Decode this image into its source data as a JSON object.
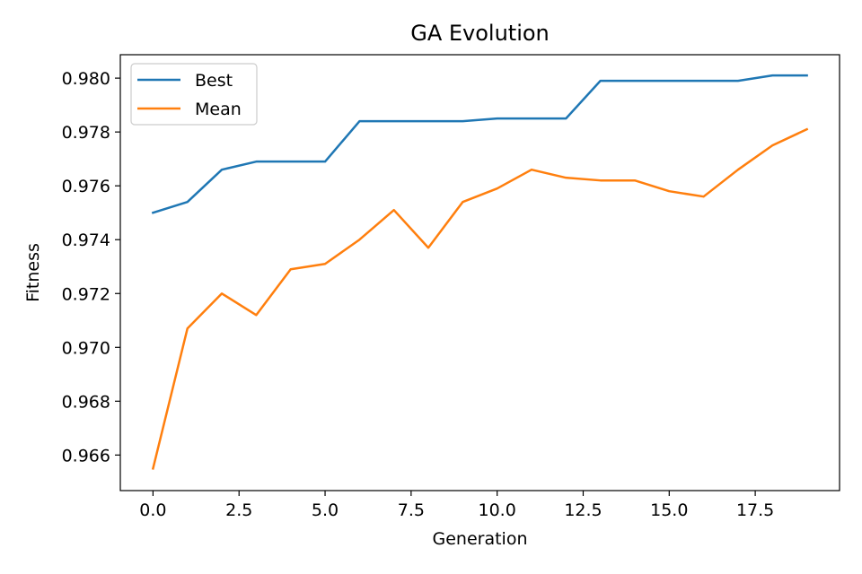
{
  "chart_data": {
    "type": "line",
    "title": "GA Evolution",
    "xlabel": "Generation",
    "ylabel": "Fitness",
    "xlim": [
      -0.95,
      19.95
    ],
    "ylim": [
      0.96468,
      0.98087
    ],
    "xticks": [
      0,
      2.5,
      5,
      7.5,
      10,
      12.5,
      15,
      17.5
    ],
    "xtick_labels": [
      "0.0",
      "2.5",
      "5.0",
      "7.5",
      "10.0",
      "12.5",
      "15.0",
      "17.5"
    ],
    "yticks": [
      0.966,
      0.968,
      0.97,
      0.972,
      0.974,
      0.976,
      0.978,
      0.98
    ],
    "ytick_labels": [
      "0.966",
      "0.968",
      "0.970",
      "0.972",
      "0.974",
      "0.976",
      "0.978",
      "0.980"
    ],
    "grid": false,
    "legend_position": "top-left",
    "x": [
      0,
      1,
      2,
      3,
      4,
      5,
      6,
      7,
      8,
      9,
      10,
      11,
      12,
      13,
      14,
      15,
      16,
      17,
      18,
      19
    ],
    "series": [
      {
        "name": "Best",
        "color": "#1f77b4",
        "values": [
          0.975,
          0.9754,
          0.9766,
          0.9769,
          0.9769,
          0.9769,
          0.9784,
          0.9784,
          0.9784,
          0.9784,
          0.9785,
          0.9785,
          0.9785,
          0.9799,
          0.9799,
          0.9799,
          0.9799,
          0.9799,
          0.9801,
          0.9801
        ]
      },
      {
        "name": "Mean",
        "color": "#ff7f0e",
        "values": [
          0.9655,
          0.9707,
          0.972,
          0.9712,
          0.9729,
          0.9731,
          0.974,
          0.9751,
          0.9737,
          0.9754,
          0.9759,
          0.9766,
          0.9763,
          0.9762,
          0.9762,
          0.9758,
          0.9756,
          0.9766,
          0.9775,
          0.9781
        ]
      }
    ]
  }
}
